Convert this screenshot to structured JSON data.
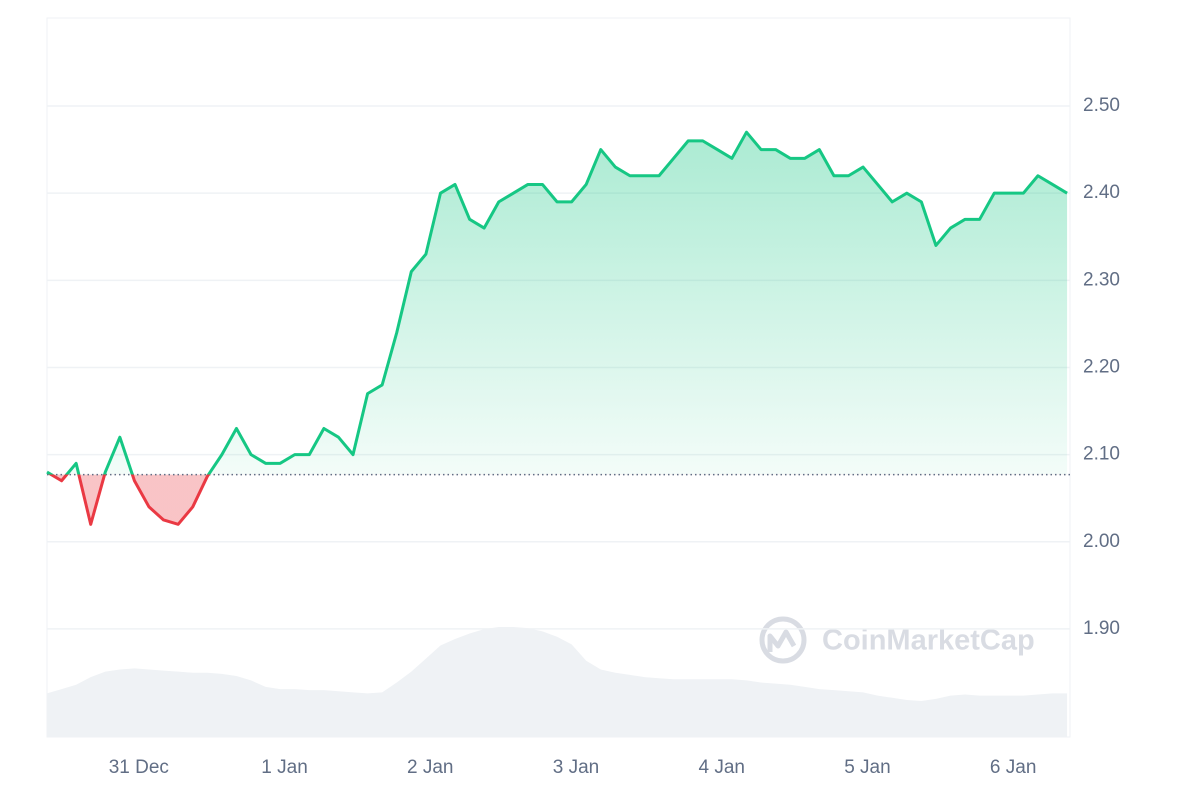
{
  "chart_data": {
    "type": "line",
    "watermark": "CoinMarketCap",
    "x": [
      -0.63,
      -0.53,
      -0.43,
      -0.33,
      -0.23,
      -0.13,
      -0.03,
      0.07,
      0.17,
      0.27,
      0.37,
      0.47,
      0.57,
      0.67,
      0.77,
      0.87,
      0.97,
      1.07,
      1.17,
      1.27,
      1.37,
      1.47,
      1.57,
      1.67,
      1.77,
      1.87,
      1.97,
      2.07,
      2.17,
      2.27,
      2.37,
      2.47,
      2.57,
      2.67,
      2.77,
      2.87,
      2.97,
      3.07,
      3.17,
      3.27,
      3.37,
      3.47,
      3.57,
      3.67,
      3.77,
      3.87,
      3.97,
      4.07,
      4.17,
      4.27,
      4.37,
      4.47,
      4.57,
      4.67,
      4.77,
      4.87,
      4.97,
      5.07,
      5.17,
      5.27,
      5.37,
      5.47,
      5.57,
      5.67,
      5.77,
      5.87,
      5.97,
      6.07,
      6.17,
      6.27,
      6.37
    ],
    "series": [
      {
        "name": "Price",
        "up_color": "#16c784",
        "down_color": "#ea3943",
        "values": [
          2.08,
          2.07,
          2.09,
          2.02,
          2.08,
          2.12,
          2.07,
          2.04,
          2.025,
          2.02,
          2.04,
          2.075,
          2.1,
          2.13,
          2.1,
          2.09,
          2.09,
          2.1,
          2.1,
          2.13,
          2.12,
          2.1,
          2.17,
          2.18,
          2.24,
          2.31,
          2.33,
          2.4,
          2.41,
          2.37,
          2.36,
          2.39,
          2.4,
          2.41,
          2.41,
          2.39,
          2.39,
          2.41,
          2.45,
          2.43,
          2.42,
          2.42,
          2.42,
          2.44,
          2.46,
          2.46,
          2.45,
          2.44,
          2.47,
          2.45,
          2.45,
          2.44,
          2.44,
          2.45,
          2.42,
          2.42,
          2.43,
          2.41,
          2.39,
          2.4,
          2.39,
          2.34,
          2.36,
          2.37,
          2.37,
          2.4,
          2.4,
          2.4,
          2.42,
          2.41,
          2.4
        ]
      },
      {
        "name": "Volume",
        "color": "#eff2f5",
        "values": [
          40,
          44,
          48,
          55,
          60,
          62,
          63,
          62,
          61,
          60,
          59,
          59,
          58,
          56,
          52,
          46,
          44,
          44,
          43,
          43,
          42,
          41,
          40,
          41,
          50,
          60,
          72,
          84,
          90,
          95,
          99,
          101,
          101,
          100,
          97,
          92,
          85,
          70,
          62,
          59,
          57,
          55,
          54,
          53,
          53,
          53,
          53,
          53,
          52,
          50,
          49,
          48,
          46,
          44,
          43,
          42,
          41,
          38,
          36,
          34,
          33,
          35,
          38,
          39,
          38,
          38,
          38,
          38,
          39,
          40,
          40
        ]
      }
    ],
    "baseline": 2.077,
    "xlim": [
      -0.63,
      6.39
    ],
    "xticks": [
      {
        "value": 0,
        "label": "31 Dec"
      },
      {
        "value": 1,
        "label": "1 Jan"
      },
      {
        "value": 2,
        "label": "2 Jan"
      },
      {
        "value": 3,
        "label": "3 Jan"
      },
      {
        "value": 4,
        "label": "4 Jan"
      },
      {
        "value": 5,
        "label": "5 Jan"
      },
      {
        "value": 6,
        "label": "6 Jan"
      }
    ],
    "ylim": [
      1.776,
      2.601
    ],
    "yticks": [
      {
        "value": 1.9,
        "label": "1.90"
      },
      {
        "value": 2.0,
        "label": "2.00"
      },
      {
        "value": 2.1,
        "label": "2.10"
      },
      {
        "value": 2.2,
        "label": "2.20"
      },
      {
        "value": 2.3,
        "label": "2.30"
      },
      {
        "value": 2.4,
        "label": "2.40"
      },
      {
        "value": 2.5,
        "label": "2.50"
      }
    ],
    "grid": true
  }
}
